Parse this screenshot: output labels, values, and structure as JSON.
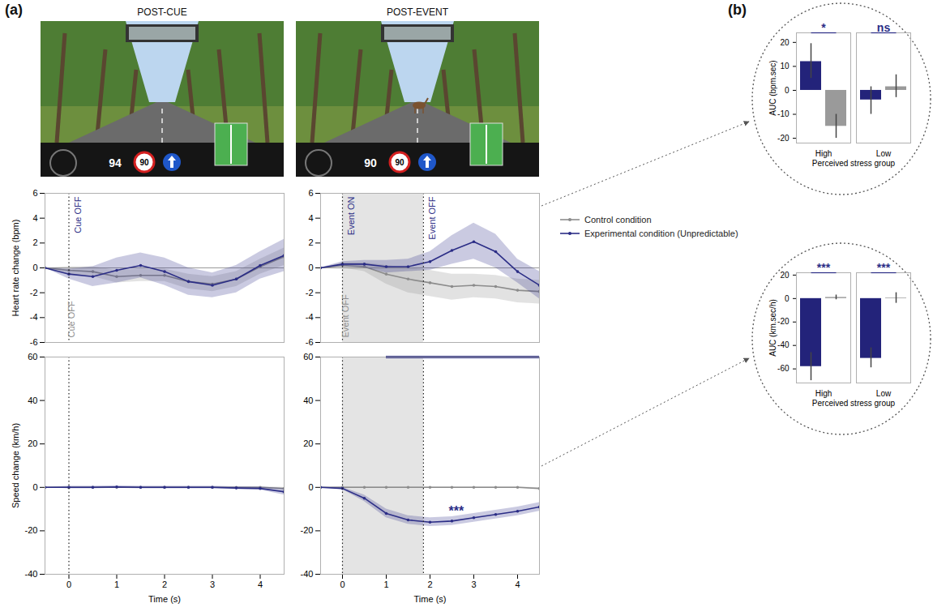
{
  "panel_labels": [
    "(a)",
    "(b)"
  ],
  "screenshots": [
    {
      "title": "POST-CUE",
      "speed": 94,
      "limit": 90
    },
    {
      "title": "POST-EVENT",
      "speed": 90,
      "limit": 90
    }
  ],
  "chart_data": [
    {
      "type": "line",
      "ylabel": "Heart rate change (bpm)",
      "tick_labels": "y",
      "xlim": [
        -0.5,
        4.5
      ],
      "ylim": [
        -6,
        6
      ],
      "yticks": [
        -6,
        -4,
        -2,
        0,
        2,
        4,
        6
      ],
      "reference_line": 0,
      "x": [
        -0.5,
        0,
        0.5,
        1,
        1.5,
        2,
        2.5,
        3,
        3.5,
        4,
        4.5
      ],
      "series": [
        {
          "name": "Control condition",
          "color": "#8c8c8c",
          "marker": "dot",
          "values": [
            0,
            -0.2,
            -0.3,
            -0.7,
            -0.6,
            -0.6,
            -1.1,
            -1.3,
            -0.9,
            0.1,
            0.9
          ],
          "ci_lower": [
            0,
            -0.5,
            -0.7,
            -1.2,
            -1.1,
            -1.1,
            -1.7,
            -1.9,
            -1.5,
            -0.5,
            0.2
          ],
          "ci_upper": [
            0,
            0.1,
            0.1,
            -0.2,
            -0.1,
            -0.1,
            -0.5,
            -0.7,
            -0.3,
            0.7,
            1.6
          ]
        },
        {
          "name": "Experimental condition (Unpredictable)",
          "color": "#2b2d86",
          "marker": "dot",
          "values": [
            0,
            -0.5,
            -0.7,
            -0.2,
            0.2,
            -0.3,
            -1.1,
            -1.4,
            -0.9,
            0.2,
            1.0
          ],
          "ci_lower": [
            0,
            -0.9,
            -1.5,
            -1.2,
            -0.8,
            -1.4,
            -2.2,
            -2.4,
            -2.0,
            -0.9,
            -0.3
          ],
          "ci_upper": [
            0,
            -0.1,
            0.1,
            0.8,
            1.2,
            0.8,
            0.0,
            -0.4,
            0.2,
            1.3,
            2.3
          ]
        }
      ],
      "events": [
        {
          "label": "Cue OFF",
          "x": 0,
          "series": "Experimental condition (Unpredictable)"
        },
        {
          "label": "Cue OFF",
          "x": 0,
          "series": "Control condition"
        }
      ]
    },
    {
      "type": "line",
      "tick_labels": "y",
      "legend": "right",
      "xlim": [
        -0.5,
        4.5
      ],
      "ylim": [
        -6,
        6
      ],
      "yticks": [
        -6,
        -4,
        -2,
        0,
        2,
        4,
        6
      ],
      "reference_line": 0,
      "shaded_interval": [
        0,
        1.85
      ],
      "x": [
        -0.5,
        0,
        0.5,
        1,
        1.5,
        2,
        2.5,
        3,
        3.5,
        4,
        4.5
      ],
      "series": [
        {
          "name": "Control condition",
          "color": "#8c8c8c",
          "marker": "dot",
          "values": [
            0,
            0.2,
            0.1,
            -0.5,
            -0.9,
            -1.2,
            -1.5,
            -1.4,
            -1.5,
            -1.8,
            -1.9
          ],
          "ci_lower": [
            0,
            0,
            -0.3,
            -1.3,
            -2.0,
            -2.3,
            -2.6,
            -2.4,
            -2.5,
            -2.8,
            -2.9
          ],
          "ci_upper": [
            0,
            0.4,
            0.4,
            0.2,
            0,
            -0.2,
            -0.5,
            -0.5,
            -0.6,
            -0.9,
            -1.0
          ]
        },
        {
          "name": "Experimental condition (Unpredictable)",
          "color": "#2b2d86",
          "marker": "dot",
          "values": [
            0,
            0.3,
            0.3,
            0.1,
            0.1,
            0.5,
            1.4,
            2.1,
            1.3,
            -0.3,
            -1.4
          ],
          "ci_lower": [
            0,
            0.1,
            0,
            -0.4,
            -0.3,
            -0.2,
            0.3,
            0.7,
            0,
            -1.2,
            -2.5
          ],
          "ci_upper": [
            0,
            0.5,
            0.6,
            0.6,
            0.7,
            1.3,
            2.6,
            3.6,
            2.7,
            0.7,
            -0.3
          ]
        }
      ],
      "events": [
        {
          "label": "Event ON",
          "x": 0,
          "series": "Experimental condition (Unpredictable)"
        },
        {
          "label": "Event OFF",
          "x": 1.85,
          "series": "Experimental condition (Unpredictable)"
        },
        {
          "label": "Event OFF",
          "x": 0,
          "series": "Control condition"
        }
      ]
    },
    {
      "type": "line",
      "ylabel": "Speed change (km/h)",
      "xlabel": "Time (s)",
      "xlim": [
        -0.5,
        4.5
      ],
      "xticks": [
        0,
        1,
        2,
        3,
        4
      ],
      "ylim": [
        -40,
        60
      ],
      "yticks": [
        -40,
        -20,
        0,
        20,
        40,
        60
      ],
      "event_lines": [
        0
      ],
      "x": [
        -0.5,
        0,
        0.5,
        1,
        1.5,
        2,
        2.5,
        3,
        3.5,
        4,
        4.5
      ],
      "series": [
        {
          "name": "Control condition",
          "color": "#8c8c8c",
          "marker": "dot",
          "values": [
            0,
            0,
            0,
            0,
            0,
            0,
            0,
            0,
            0,
            0,
            -0.5
          ],
          "ci_lower": [
            0,
            -0.3,
            -0.3,
            -0.3,
            -0.3,
            -0.3,
            -0.3,
            -0.3,
            -0.3,
            -0.3,
            -1
          ],
          "ci_upper": [
            0,
            0.3,
            0.3,
            0.3,
            0.3,
            0.3,
            0.3,
            0.3,
            0.3,
            0.3,
            0
          ]
        },
        {
          "name": "Experimental condition (Unpredictable)",
          "color": "#2b2d86",
          "marker": "dot",
          "values": [
            0,
            0,
            0,
            0.2,
            0,
            0,
            0,
            0,
            -0.3,
            -0.5,
            -2
          ],
          "ci_lower": [
            0,
            -0.6,
            -0.6,
            -0.4,
            -0.6,
            -0.6,
            -0.6,
            -0.6,
            -0.9,
            -1.2,
            -3.5
          ],
          "ci_upper": [
            0,
            0.6,
            0.6,
            0.8,
            0.6,
            0.6,
            0.6,
            0.6,
            0.3,
            0.2,
            -0.5
          ]
        }
      ]
    },
    {
      "type": "line",
      "xlabel": "Time (s)",
      "xlim": [
        -0.5,
        4.5
      ],
      "xticks": [
        0,
        1,
        2,
        3,
        4
      ],
      "ylim": [
        -40,
        60
      ],
      "yticks": [
        -40,
        -20,
        0,
        20,
        40,
        60
      ],
      "event_lines": [
        0,
        1.85
      ],
      "shaded_interval": [
        0,
        1.85
      ],
      "significance_bar": {
        "x1": 1,
        "x2": 4.5,
        "y": 60,
        "color": "#2b2d86"
      },
      "annotations": [
        {
          "text": "***",
          "x": 2.6,
          "y": -11,
          "color": "#2b2d86"
        }
      ],
      "x": [
        -0.5,
        0,
        0.5,
        1,
        1.5,
        2,
        2.5,
        3,
        3.5,
        4,
        4.5
      ],
      "series": [
        {
          "name": "Control condition",
          "color": "#8c8c8c",
          "marker": "dot",
          "values": [
            0,
            0,
            0,
            0,
            0,
            0,
            0,
            0,
            0,
            0,
            -0.5
          ],
          "ci_lower": [
            0,
            -0.3,
            -0.3,
            -0.3,
            -0.3,
            -0.3,
            -0.3,
            -0.3,
            -0.3,
            -0.3,
            -0.8
          ],
          "ci_upper": [
            0,
            0.3,
            0.3,
            0.3,
            0.3,
            0.3,
            0.3,
            0.3,
            0.3,
            0.3,
            -0.2
          ]
        },
        {
          "name": "Experimental condition (Unpredictable)",
          "color": "#2b2d86",
          "marker": "dot",
          "values": [
            0,
            -0.5,
            -5,
            -12,
            -15,
            -16,
            -15.5,
            -14,
            -12.5,
            -11,
            -9
          ],
          "ci_lower": [
            0,
            -1,
            -6.5,
            -14,
            -17,
            -18,
            -17.5,
            -16,
            -14.5,
            -13,
            -11
          ],
          "ci_upper": [
            0,
            0,
            -3.5,
            -10,
            -13,
            -14,
            -13.5,
            -12,
            -10.5,
            -9,
            -7
          ]
        }
      ]
    },
    {
      "type": "bar",
      "ylabel": "AUC (bpm.sec)",
      "xlabel": "Perceived stress group",
      "categories": [
        "High",
        "Low"
      ],
      "ylim": [
        -22,
        24
      ],
      "yticks": [
        -20,
        -10,
        0,
        10,
        20
      ],
      "series": [
        {
          "name": "Experimental condition (Unpredictable)",
          "color": "#23237a",
          "values": [
            12,
            -4
          ],
          "error_lower": [
            5,
            -10
          ],
          "error_upper": [
            19.5,
            1.5
          ]
        },
        {
          "name": "Control condition",
          "color": "#9a9a9a",
          "values": [
            -15,
            1.5
          ],
          "error_lower": [
            -20,
            -3
          ],
          "error_upper": [
            -10,
            6.5
          ]
        }
      ],
      "annotations": [
        {
          "category": "High",
          "text": "*",
          "color": "#2b2d86"
        },
        {
          "category": "Low",
          "text": "ns",
          "color": "#2b2d86"
        }
      ]
    },
    {
      "type": "bar",
      "ylabel": "AUC (km.sec/h)",
      "xlabel": "Perceived stress group",
      "categories": [
        "High",
        "Low"
      ],
      "ylim": [
        -72,
        22
      ],
      "yticks": [
        -60,
        -40,
        -20,
        0,
        20
      ],
      "series": [
        {
          "name": "Experimental condition (Unpredictable)",
          "color": "#23237a",
          "values": [
            -58,
            -51
          ],
          "error_lower": [
            -70,
            -59
          ],
          "error_upper": [
            -46,
            -42
          ]
        },
        {
          "name": "Control condition",
          "color": "#9a9a9a",
          "values": [
            1,
            0.5
          ],
          "error_lower": [
            -1,
            -4
          ],
          "error_upper": [
            3,
            5
          ]
        }
      ],
      "annotations": [
        {
          "category": "High",
          "text": "***",
          "color": "#2b2d86"
        },
        {
          "category": "Low",
          "text": "***",
          "color": "#2b2d86"
        }
      ]
    }
  ]
}
